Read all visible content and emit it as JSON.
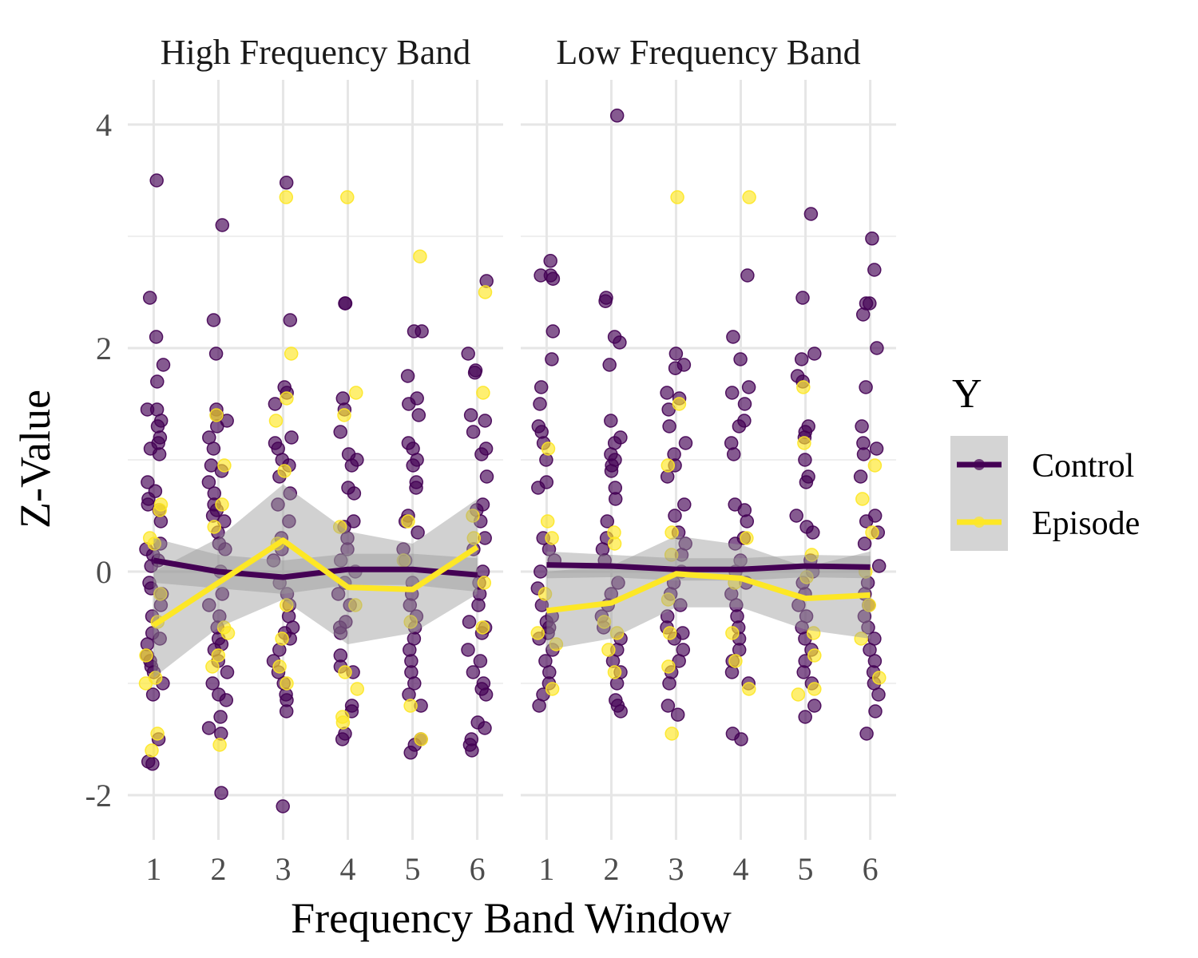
{
  "chart_data": {
    "type": "scatter",
    "xlabel": "Frequency Band Window",
    "ylabel": "Z-Value",
    "ylim": [
      -2.4,
      4.4
    ],
    "xlim": [
      0.6,
      6.4
    ],
    "y_ticks": [
      -2,
      0,
      2,
      4
    ],
    "x_ticks": [
      1,
      2,
      3,
      4,
      5,
      6
    ],
    "grid": true,
    "legend": {
      "title": "Y",
      "placement": "right",
      "entries": [
        {
          "name": "Control",
          "color": "#440154"
        },
        {
          "name": "Episode",
          "color": "#FDE725"
        }
      ]
    },
    "ribbon_color": "#999999",
    "panels": [
      {
        "title": "High Frequency Band",
        "trend": {
          "Control": {
            "x": [
              1,
              2,
              3,
              4,
              5,
              6
            ],
            "y": [
              0.1,
              0.0,
              -0.05,
              0.02,
              0.02,
              -0.03
            ],
            "lower": [
              -0.1,
              -0.15,
              -0.2,
              -0.12,
              -0.12,
              -0.18
            ],
            "upper": [
              0.3,
              0.15,
              0.1,
              0.16,
              0.16,
              0.12
            ]
          },
          "Episode": {
            "x": [
              1,
              2,
              3,
              4,
              5,
              6
            ],
            "y": [
              -0.48,
              -0.1,
              0.28,
              -0.14,
              -0.16,
              0.22
            ],
            "lower": [
              -0.95,
              -0.5,
              -0.25,
              -0.65,
              -0.55,
              -0.2
            ],
            "upper": [
              0.0,
              0.3,
              0.78,
              0.36,
              0.25,
              0.65
            ]
          }
        },
        "points": [
          {
            "group": "Control",
            "x": 1,
            "y": [
              3.5,
              2.45,
              2.1,
              1.85,
              1.7,
              1.45,
              1.45,
              1.35,
              1.3,
              1.2,
              1.15,
              1.1,
              1.05,
              0.8,
              0.72,
              0.65,
              0.6,
              0.55,
              0.45,
              0.25,
              0.2,
              0.15,
              0.1,
              0.05,
              -0.1,
              -0.15,
              -0.2,
              -0.3,
              -0.4,
              -0.55,
              -0.6,
              -0.65,
              -0.75,
              -0.8,
              -0.85,
              -0.9,
              -1.0,
              -1.1,
              -1.5,
              -1.7,
              -1.72
            ]
          },
          {
            "group": "Episode",
            "x": 1,
            "y": [
              0.6,
              0.55,
              0.3,
              0.25,
              -0.2,
              -0.45,
              -0.75,
              -0.95,
              -1.0,
              -1.45,
              -1.6
            ]
          },
          {
            "group": "Control",
            "x": 2,
            "y": [
              3.1,
              2.25,
              1.95,
              1.45,
              1.4,
              1.35,
              1.3,
              1.2,
              1.1,
              0.95,
              0.9,
              0.8,
              0.7,
              0.6,
              0.55,
              0.5,
              0.45,
              0.35,
              0.25,
              0.2,
              0.0,
              -0.2,
              -0.3,
              -0.4,
              -0.5,
              -0.6,
              -0.65,
              -0.7,
              -0.8,
              -0.9,
              -1.0,
              -1.1,
              -1.15,
              -1.3,
              -1.4,
              -1.45,
              -1.98
            ]
          },
          {
            "group": "Episode",
            "x": 2,
            "y": [
              1.4,
              0.95,
              0.6,
              0.4,
              -0.5,
              -0.55,
              -0.75,
              -0.85,
              -1.55
            ]
          },
          {
            "group": "Control",
            "x": 3,
            "y": [
              3.48,
              2.25,
              1.65,
              1.6,
              1.5,
              1.2,
              1.15,
              1.1,
              1.0,
              0.95,
              0.85,
              0.7,
              0.6,
              0.45,
              0.3,
              0.2,
              0.1,
              -0.1,
              -0.2,
              -0.3,
              -0.4,
              -0.5,
              -0.55,
              -0.6,
              -0.7,
              -0.8,
              -0.9,
              -1.0,
              -1.1,
              -1.15,
              -1.25,
              -2.1
            ]
          },
          {
            "group": "Episode",
            "x": 3,
            "y": [
              3.35,
              1.95,
              1.55,
              1.35,
              0.9,
              0.25,
              -0.3,
              -0.6,
              -0.85,
              -1.0
            ]
          },
          {
            "group": "Control",
            "x": 4,
            "y": [
              2.4,
              2.4,
              1.55,
              1.45,
              1.25,
              1.05,
              1.0,
              0.95,
              0.75,
              0.7,
              0.45,
              0.4,
              0.3,
              0.2,
              0.1,
              0.0,
              -0.1,
              -0.2,
              -0.3,
              -0.45,
              -0.5,
              -0.55,
              -0.75,
              -0.85,
              -0.9,
              -1.2,
              -1.25,
              -1.45,
              -1.5
            ]
          },
          {
            "group": "Episode",
            "x": 4,
            "y": [
              3.35,
              1.6,
              1.4,
              0.4,
              -0.3,
              -0.9,
              -1.05,
              -1.3,
              -1.35
            ]
          },
          {
            "group": "Control",
            "x": 5,
            "y": [
              2.15,
              2.15,
              1.75,
              1.55,
              1.5,
              1.4,
              1.15,
              1.1,
              1.0,
              0.95,
              0.8,
              0.75,
              0.5,
              0.45,
              0.35,
              0.2,
              0.1,
              -0.1,
              -0.2,
              -0.3,
              -0.4,
              -0.5,
              -0.6,
              -0.7,
              -0.8,
              -0.9,
              -1.0,
              -1.1,
              -1.2,
              -1.5,
              -1.55,
              -1.62
            ]
          },
          {
            "group": "Episode",
            "x": 5,
            "y": [
              2.82,
              0.45,
              0.1,
              -0.45,
              -1.2,
              -1.5
            ]
          },
          {
            "group": "Control",
            "x": 6,
            "y": [
              2.6,
              1.95,
              1.8,
              1.78,
              1.4,
              1.35,
              1.25,
              1.1,
              1.05,
              0.85,
              0.6,
              0.55,
              0.45,
              0.3,
              0.2,
              0.0,
              -0.1,
              -0.2,
              -0.3,
              -0.45,
              -0.5,
              -0.55,
              -0.7,
              -0.8,
              -0.9,
              -1.0,
              -1.05,
              -1.1,
              -1.35,
              -1.4,
              -1.5,
              -1.55,
              -1.6
            ]
          },
          {
            "group": "Episode",
            "x": 6,
            "y": [
              2.5,
              1.6,
              0.5,
              0.3,
              -0.1,
              -0.5
            ]
          }
        ]
      },
      {
        "title": "Low Frequency Band",
        "trend": {
          "Control": {
            "x": [
              1,
              2,
              3,
              4,
              5,
              6
            ],
            "y": [
              0.06,
              0.05,
              0.02,
              0.02,
              0.05,
              0.04
            ],
            "lower": [
              -0.06,
              -0.05,
              -0.08,
              -0.08,
              -0.05,
              -0.06
            ],
            "upper": [
              0.18,
              0.15,
              0.12,
              0.12,
              0.15,
              0.14
            ]
          },
          "Episode": {
            "x": [
              1,
              2,
              3,
              4,
              5,
              6
            ],
            "y": [
              -0.35,
              -0.28,
              -0.02,
              -0.06,
              -0.24,
              -0.21
            ],
            "lower": [
              -0.7,
              -0.6,
              -0.32,
              -0.32,
              -0.52,
              -0.6
            ],
            "upper": [
              0.0,
              0.05,
              0.32,
              0.24,
              0.04,
              0.18
            ]
          }
        },
        "points": [
          {
            "group": "Control",
            "x": 1,
            "y": [
              2.78,
              2.65,
              2.65,
              2.62,
              2.15,
              1.9,
              1.65,
              1.5,
              1.3,
              1.25,
              1.15,
              1.0,
              0.8,
              0.75,
              0.3,
              0.2,
              0.1,
              0.0,
              -0.15,
              -0.3,
              -0.4,
              -0.45,
              -0.5,
              -0.55,
              -0.6,
              -0.7,
              -0.8,
              -0.9,
              -1.0,
              -1.1,
              -1.2
            ]
          },
          {
            "group": "Episode",
            "x": 1,
            "y": [
              1.1,
              0.45,
              0.3,
              -0.2,
              -0.55,
              -0.65,
              -1.05
            ]
          },
          {
            "group": "Control",
            "x": 2,
            "y": [
              4.08,
              2.45,
              2.42,
              2.1,
              2.05,
              1.85,
              1.35,
              1.2,
              1.15,
              1.05,
              1.0,
              0.95,
              0.9,
              0.75,
              0.65,
              0.45,
              0.3,
              0.2,
              0.1,
              -0.1,
              -0.2,
              -0.3,
              -0.4,
              -0.5,
              -0.6,
              -0.7,
              -0.8,
              -0.9,
              -1.0,
              -1.15,
              -1.2,
              -1.25
            ]
          },
          {
            "group": "Episode",
            "x": 2,
            "y": [
              0.35,
              0.25,
              -0.45,
              -0.55,
              -0.7,
              -0.9
            ]
          },
          {
            "group": "Control",
            "x": 3,
            "y": [
              1.95,
              1.85,
              1.82,
              1.6,
              1.55,
              1.45,
              1.3,
              1.15,
              1.05,
              0.95,
              0.85,
              0.6,
              0.5,
              0.35,
              0.25,
              0.15,
              0.0,
              -0.1,
              -0.2,
              -0.3,
              -0.4,
              -0.5,
              -0.55,
              -0.6,
              -0.7,
              -0.8,
              -0.9,
              -1.0,
              -1.2,
              -1.28
            ]
          },
          {
            "group": "Episode",
            "x": 3,
            "y": [
              3.35,
              1.5,
              0.95,
              0.35,
              0.15,
              -0.25,
              -0.55,
              -0.85,
              -1.45
            ]
          },
          {
            "group": "Control",
            "x": 4,
            "y": [
              2.65,
              2.1,
              1.9,
              1.65,
              1.6,
              1.5,
              1.35,
              1.3,
              1.15,
              1.05,
              0.6,
              0.55,
              0.45,
              0.3,
              0.25,
              0.1,
              0.0,
              -0.1,
              -0.2,
              -0.3,
              -0.4,
              -0.5,
              -0.6,
              -0.7,
              -0.8,
              -0.9,
              -1.0,
              -1.45,
              -1.5
            ]
          },
          {
            "group": "Episode",
            "x": 4,
            "y": [
              3.35,
              0.3,
              -0.1,
              -0.55,
              -0.8,
              -1.05
            ]
          },
          {
            "group": "Control",
            "x": 5,
            "y": [
              3.2,
              2.45,
              1.95,
              1.9,
              1.75,
              1.7,
              1.3,
              1.25,
              1.2,
              1.0,
              0.85,
              0.8,
              0.5,
              0.4,
              0.35,
              0.1,
              0.0,
              -0.1,
              -0.2,
              -0.3,
              -0.4,
              -0.5,
              -0.6,
              -0.7,
              -0.8,
              -0.9,
              -1.0,
              -1.2,
              -1.3
            ]
          },
          {
            "group": "Episode",
            "x": 5,
            "y": [
              1.65,
              1.15,
              0.15,
              -0.05,
              -0.55,
              -0.75,
              -1.05,
              -1.1
            ]
          },
          {
            "group": "Control",
            "x": 6,
            "y": [
              2.98,
              2.7,
              2.4,
              2.4,
              2.3,
              2.0,
              1.65,
              1.3,
              1.15,
              1.1,
              1.05,
              0.85,
              0.5,
              0.45,
              0.35,
              0.25,
              0.05,
              -0.1,
              -0.2,
              -0.3,
              -0.4,
              -0.5,
              -0.6,
              -0.7,
              -0.8,
              -0.9,
              -1.0,
              -1.1,
              -1.25,
              -1.45
            ]
          },
          {
            "group": "Episode",
            "x": 6,
            "y": [
              0.95,
              0.65,
              0.35,
              0.0,
              -0.3,
              -0.6,
              -0.95
            ]
          }
        ]
      }
    ]
  }
}
